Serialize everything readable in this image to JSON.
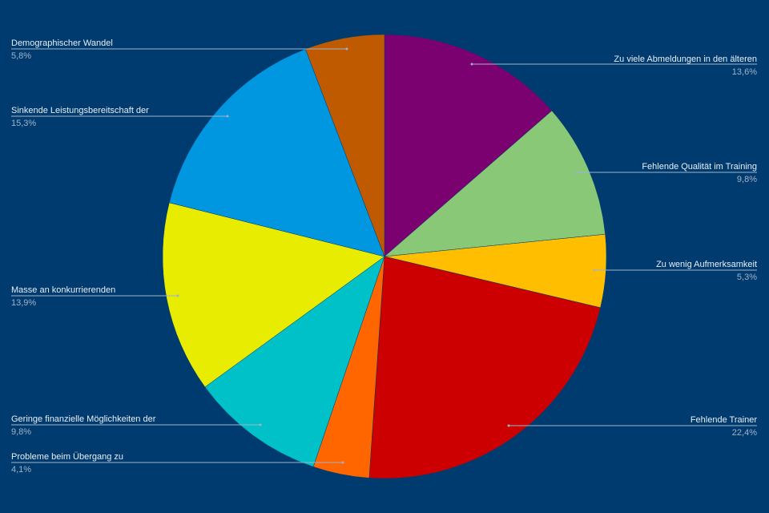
{
  "chart_data": {
    "type": "pie",
    "categories": [
      "Zu viele Abmeldungen in den älteren",
      "Fehlende Qualität im Training",
      "Zu wenig Aufmerksamkeit",
      "Fehlende Trainer",
      "Probleme beim Übergang zu",
      "Geringe finanzielle Möglichkeiten der",
      "Masse an konkurrierenden",
      "Sinkende Leistungsbereitschaft der",
      "Demographischer Wandel"
    ],
    "values": [
      13.6,
      9.8,
      5.3,
      22.4,
      4.1,
      9.8,
      13.9,
      15.3,
      5.8
    ],
    "value_labels": [
      "13,6%",
      "9,8%",
      "5,3%",
      "22,4%",
      "4,1%",
      "9,8%",
      "13,9%",
      "15,3%",
      "5,8%"
    ],
    "colors": [
      "#7b0070",
      "#88c877",
      "#ffbf00",
      "#cc0000",
      "#ff6600",
      "#00c0c8",
      "#e8ec00",
      "#0096e0",
      "#bf5a00"
    ]
  }
}
